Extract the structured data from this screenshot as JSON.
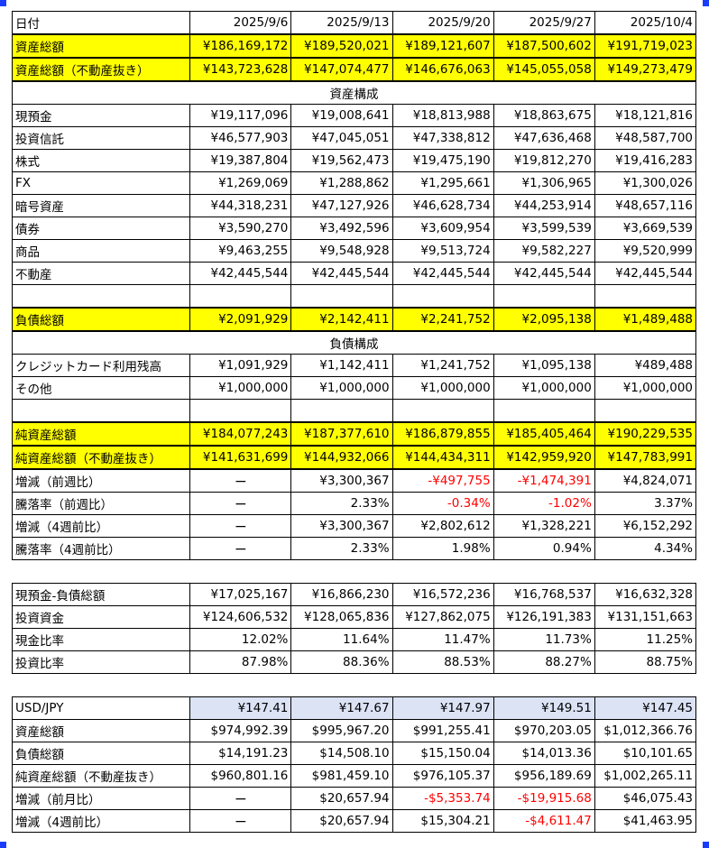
{
  "header": {
    "label": "日付",
    "dates": [
      "2025/9/6",
      "2025/9/13",
      "2025/9/20",
      "2025/9/27",
      "2025/10/4"
    ]
  },
  "main": [
    {
      "label": "資産総額",
      "values": [
        "¥186,169,172",
        "¥189,520,021",
        "¥189,121,607",
        "¥187,500,602",
        "¥191,719,023"
      ],
      "style": "yellow"
    },
    {
      "label": "資産総額（不動産抜き）",
      "values": [
        "¥143,723,628",
        "¥147,074,477",
        "¥146,676,063",
        "¥145,055,058",
        "¥149,273,479"
      ],
      "style": "yellow"
    },
    {
      "section": "資産構成"
    },
    {
      "label": "現預金",
      "values": [
        "¥19,117,096",
        "¥19,008,641",
        "¥18,813,988",
        "¥18,863,675",
        "¥18,121,816"
      ]
    },
    {
      "label": "投資信託",
      "values": [
        "¥46,577,903",
        "¥47,045,051",
        "¥47,338,812",
        "¥47,636,468",
        "¥48,587,700"
      ]
    },
    {
      "label": "株式",
      "values": [
        "¥19,387,804",
        "¥19,562,473",
        "¥19,475,190",
        "¥19,812,270",
        "¥19,416,283"
      ]
    },
    {
      "label": "FX",
      "values": [
        "¥1,269,069",
        "¥1,288,862",
        "¥1,295,661",
        "¥1,306,965",
        "¥1,300,026"
      ]
    },
    {
      "label": "暗号資産",
      "values": [
        "¥44,318,231",
        "¥47,127,926",
        "¥46,628,734",
        "¥44,253,914",
        "¥48,657,116"
      ]
    },
    {
      "label": "債券",
      "values": [
        "¥3,590,270",
        "¥3,492,596",
        "¥3,609,954",
        "¥3,599,539",
        "¥3,669,539"
      ]
    },
    {
      "label": "商品",
      "values": [
        "¥9,463,255",
        "¥9,548,928",
        "¥9,513,724",
        "¥9,582,227",
        "¥9,520,999"
      ]
    },
    {
      "label": "不動産",
      "values": [
        "¥42,445,544",
        "¥42,445,544",
        "¥42,445,544",
        "¥42,445,544",
        "¥42,445,544"
      ]
    },
    {
      "blank": true
    },
    {
      "label": "負債総額",
      "values": [
        "¥2,091,929",
        "¥2,142,411",
        "¥2,241,752",
        "¥2,095,138",
        "¥1,489,488"
      ],
      "style": "yellow"
    },
    {
      "section": "負債構成"
    },
    {
      "label": "クレジットカード利用残高",
      "values": [
        "¥1,091,929",
        "¥1,142,411",
        "¥1,241,752",
        "¥1,095,138",
        "¥489,488"
      ]
    },
    {
      "label": "その他",
      "values": [
        "¥1,000,000",
        "¥1,000,000",
        "¥1,000,000",
        "¥1,000,000",
        "¥1,000,000"
      ]
    },
    {
      "blank": true
    },
    {
      "label": "純資産総額",
      "values": [
        "¥184,077,243",
        "¥187,377,610",
        "¥186,879,855",
        "¥185,405,464",
        "¥190,229,535"
      ],
      "style": "yellow"
    },
    {
      "label": "純資産総額（不動産抜き）",
      "values": [
        "¥141,631,699",
        "¥144,932,066",
        "¥144,434,311",
        "¥142,959,920",
        "¥147,783,991"
      ],
      "style": "yellow"
    },
    {
      "label": "増減（前週比）",
      "values": [
        "ー",
        "¥3,300,367",
        "-¥497,755",
        "-¥1,474,391",
        "¥4,824,071"
      ],
      "neg": [
        false,
        false,
        true,
        true,
        false
      ]
    },
    {
      "label": "騰落率（前週比）",
      "values": [
        "ー",
        "2.33%",
        "-0.34%",
        "-1.02%",
        "3.37%"
      ],
      "neg": [
        false,
        false,
        true,
        true,
        false
      ]
    },
    {
      "label": "増減（4週前比）",
      "values": [
        "ー",
        "¥3,300,367",
        "¥2,802,612",
        "¥1,328,221",
        "¥6,152,292"
      ]
    },
    {
      "label": "騰落率（4週前比）",
      "values": [
        "ー",
        "2.33%",
        "1.98%",
        "0.94%",
        "4.34%"
      ]
    }
  ],
  "ratios": [
    {
      "label": "現預金-負債総額",
      "values": [
        "¥17,025,167",
        "¥16,866,230",
        "¥16,572,236",
        "¥16,768,537",
        "¥16,632,328"
      ]
    },
    {
      "label": "投資資金",
      "values": [
        "¥124,606,532",
        "¥128,065,836",
        "¥127,862,075",
        "¥126,191,383",
        "¥131,151,663"
      ]
    },
    {
      "label": "現金比率",
      "values": [
        "12.02%",
        "11.64%",
        "11.47%",
        "11.73%",
        "11.25%"
      ]
    },
    {
      "label": "投資比率",
      "values": [
        "87.98%",
        "88.36%",
        "88.53%",
        "88.27%",
        "88.75%"
      ]
    }
  ],
  "usd": [
    {
      "label": "USD/JPY",
      "values": [
        "¥147.41",
        "¥147.67",
        "¥147.97",
        "¥149.51",
        "¥147.45"
      ],
      "style": "fx"
    },
    {
      "label": "資産総額",
      "values": [
        "$974,992.39",
        "$995,967.20",
        "$991,255.41",
        "$970,203.05",
        "$1,012,366.76"
      ]
    },
    {
      "label": "負債総額",
      "values": [
        "$14,191.23",
        "$14,508.10",
        "$15,150.04",
        "$14,013.36",
        "$10,101.65"
      ]
    },
    {
      "label": "純資産総額（不動産抜き）",
      "values": [
        "$960,801.16",
        "$981,459.10",
        "$976,105.37",
        "$956,189.69",
        "$1,002,265.11"
      ]
    },
    {
      "label": "増減（前月比）",
      "values": [
        "ー",
        "$20,657.94",
        "-$5,353.74",
        "-$19,915.68",
        "$46,075.43"
      ],
      "neg": [
        false,
        false,
        true,
        true,
        false
      ]
    },
    {
      "label": "増減（4週前比）",
      "values": [
        "ー",
        "$20,657.94",
        "$15,304.21",
        "-$4,611.47",
        "$41,463.95"
      ],
      "neg": [
        false,
        false,
        false,
        true,
        false
      ]
    }
  ],
  "colors": {
    "highlight": "#ffff00",
    "negative": "#ff0000",
    "fx_row": "#dbe3f5",
    "selection_handle": "#1a3cff"
  }
}
